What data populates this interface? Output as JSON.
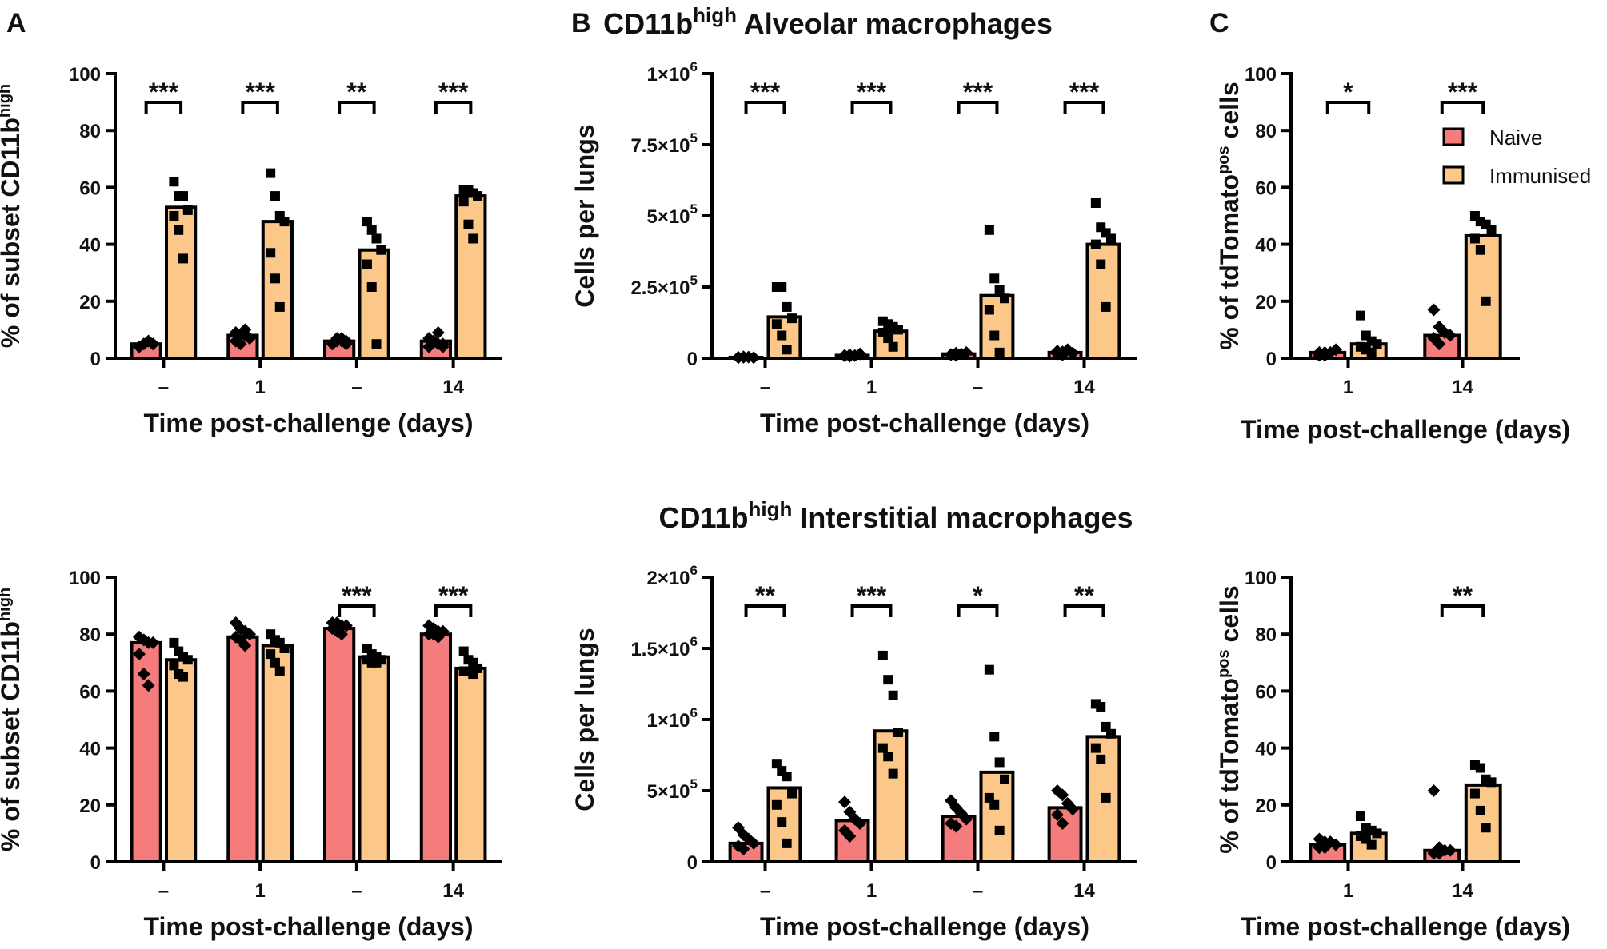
{
  "figure": {
    "panel_letters": [
      "A",
      "B",
      "C"
    ],
    "titles": {
      "alveolar": {
        "base": "CD11b",
        "sup": "high",
        "rest": " Alveolar macrophages"
      },
      "interstitial": {
        "base": "CD11b",
        "sup": "high",
        "rest": " Interstitial macrophages"
      }
    },
    "legend": {
      "items": [
        {
          "label": "Naive",
          "color": "#f47c7c"
        },
        {
          "label": "Immunised",
          "color": "#fbc88a"
        }
      ]
    },
    "colors": {
      "naive": "#f47c7c",
      "immunised": "#fbc88a",
      "bar_stroke": "#000000"
    }
  },
  "chart_data": [
    {
      "id": "A-top",
      "type": "bar",
      "categories": [
        "–",
        "1",
        "–",
        "14"
      ],
      "xlabel": "Time post-challenge (days)",
      "ylabel": {
        "pre": "% of subset CD11b",
        "sup": "high",
        "post": ""
      },
      "ylim": [
        0,
        100
      ],
      "yticks": [
        0,
        20,
        40,
        60,
        80,
        100
      ],
      "ytick_labels": [
        "0",
        "20",
        "40",
        "60",
        "80",
        "100"
      ],
      "series": [
        {
          "name": "Naive",
          "values": [
            5,
            8,
            6,
            6
          ],
          "points": [
            [
              4,
              5,
              6,
              5,
              4,
              5,
              6,
              5
            ],
            [
              6,
              8,
              10,
              7,
              9,
              5,
              8,
              7
            ],
            [
              5,
              6,
              7,
              6,
              5,
              7,
              6,
              5
            ],
            [
              4,
              6,
              9,
              5,
              7,
              6,
              5,
              4
            ]
          ]
        },
        {
          "name": "Immunised",
          "values": [
            53,
            48,
            38,
            57
          ],
          "points": [
            [
              62,
              57,
              57,
              52,
              50,
              45,
              35
            ],
            [
              65,
              57,
              50,
              48,
              37,
              28,
              18
            ],
            [
              48,
              45,
              42,
              38,
              33,
              25,
              5
            ],
            [
              59,
              59,
              58,
              57,
              55,
              47,
              42
            ]
          ]
        }
      ],
      "significance": [
        "***",
        "***",
        "**",
        "***"
      ]
    },
    {
      "id": "A-bottom",
      "type": "bar",
      "categories": [
        "–",
        "1",
        "–",
        "14"
      ],
      "xlabel": "Time post-challenge (days)",
      "ylabel": {
        "pre": "% of subset CD11b",
        "sup": "high",
        "post": ""
      },
      "ylim": [
        0,
        100
      ],
      "yticks": [
        0,
        20,
        40,
        60,
        80,
        100
      ],
      "ytick_labels": [
        "0",
        "20",
        "40",
        "60",
        "80",
        "100"
      ],
      "series": [
        {
          "name": "Naive",
          "values": [
            77,
            79,
            82,
            80
          ],
          "points": [
            [
              79,
              78,
              77,
              77,
              73,
              66,
              62
            ],
            [
              84,
              82,
              81,
              80,
              79,
              78,
              76
            ],
            [
              84,
              84,
              83,
              83,
              82,
              81,
              80
            ],
            [
              83,
              82,
              81,
              81,
              80,
              80,
              79
            ]
          ]
        },
        {
          "name": "Immunised",
          "values": [
            71,
            76,
            72,
            68
          ],
          "points": [
            [
              77,
              74,
              72,
              71,
              69,
              66,
              65
            ],
            [
              80,
              78,
              77,
              75,
              73,
              70,
              67
            ],
            [
              75,
              73,
              72,
              71,
              71,
              70,
              70
            ],
            [
              74,
              71,
              70,
              68,
              67,
              67,
              66
            ]
          ]
        }
      ],
      "significance": [
        "",
        "",
        "***",
        "***"
      ]
    },
    {
      "id": "B-top",
      "type": "bar",
      "categories": [
        "–",
        "1",
        "–",
        "14"
      ],
      "xlabel": "Time post-challenge (days)",
      "ylabel": {
        "pre": "Cells per lungs",
        "sup": "",
        "post": ""
      },
      "ylim": [
        0,
        1000000
      ],
      "yticks": [
        0,
        250000,
        500000,
        750000,
        1000000
      ],
      "ytick_labels": [
        {
          "m": "0",
          "e": ""
        },
        {
          "m": "2.5×10",
          "e": "5"
        },
        {
          "m": "5×10",
          "e": "5"
        },
        {
          "m": "7.5×10",
          "e": "5"
        },
        {
          "m": "1×10",
          "e": "6"
        }
      ],
      "series": [
        {
          "name": "Naive",
          "values": [
            3000,
            10000,
            15000,
            20000
          ],
          "points": [
            [
              2000,
              3000,
              4000,
              2000,
              3000,
              5000
            ],
            [
              8000,
              12000,
              9000,
              15000,
              10000,
              7000
            ],
            [
              12000,
              18000,
              15000,
              20000,
              13000,
              10000
            ],
            [
              15000,
              22000,
              30000,
              18000,
              25000,
              12000
            ]
          ]
        },
        {
          "name": "Immunised",
          "values": [
            145000,
            95000,
            220000,
            400000
          ],
          "points": [
            [
              250000,
              250000,
              180000,
              140000,
              120000,
              80000,
              30000
            ],
            [
              130000,
              120000,
              110000,
              100000,
              90000,
              70000,
              40000
            ],
            [
              450000,
              280000,
              240000,
              210000,
              170000,
              80000,
              20000
            ],
            [
              545000,
              460000,
              440000,
              420000,
              400000,
              330000,
              180000
            ]
          ]
        }
      ],
      "significance": [
        "***",
        "***",
        "***",
        "***"
      ]
    },
    {
      "id": "B-bottom",
      "type": "bar",
      "categories": [
        "–",
        "1",
        "–",
        "14"
      ],
      "xlabel": "Time post-challenge (days)",
      "ylabel": {
        "pre": "Cells per lungs",
        "sup": "",
        "post": ""
      },
      "ylim": [
        0,
        2000000
      ],
      "yticks": [
        0,
        500000,
        1000000,
        1500000,
        2000000
      ],
      "ytick_labels": [
        {
          "m": "0",
          "e": ""
        },
        {
          "m": "5×10",
          "e": "5"
        },
        {
          "m": "1×10",
          "e": "6"
        },
        {
          "m": "1.5×10",
          "e": "6"
        },
        {
          "m": "2×10",
          "e": "6"
        }
      ],
      "series": [
        {
          "name": "Naive",
          "values": [
            130000,
            290000,
            320000,
            380000
          ],
          "points": [
            [
              240000,
              190000,
              160000,
              130000,
              110000,
              90000
            ],
            [
              420000,
              350000,
              300000,
              270000,
              220000,
              180000
            ],
            [
              430000,
              380000,
              340000,
              300000,
              270000,
              250000
            ],
            [
              500000,
              470000,
              410000,
              370000,
              330000,
              270000
            ]
          ]
        },
        {
          "name": "Immunised",
          "values": [
            520000,
            920000,
            630000,
            880000
          ],
          "points": [
            [
              690000,
              640000,
              600000,
              480000,
              400000,
              280000,
              130000
            ],
            [
              1450000,
              1280000,
              1170000,
              910000,
              800000,
              740000,
              620000
            ],
            [
              1350000,
              880000,
              700000,
              580000,
              450000,
              400000,
              220000
            ],
            [
              1110000,
              1090000,
              950000,
              900000,
              800000,
              720000,
              450000
            ]
          ]
        }
      ],
      "significance": [
        "**",
        "***",
        "*",
        "**"
      ]
    },
    {
      "id": "C-top",
      "type": "bar",
      "categories": [
        "1",
        "14"
      ],
      "xlabel": "Time post-challenge (days)",
      "ylabel": {
        "pre": "% of tdTomato",
        "sup": "pos",
        "post": " cells"
      },
      "ylim": [
        0,
        100
      ],
      "yticks": [
        0,
        20,
        40,
        60,
        80,
        100
      ],
      "ytick_labels": [
        "0",
        "20",
        "40",
        "60",
        "80",
        "100"
      ],
      "series": [
        {
          "name": "Naive",
          "values": [
            2,
            8
          ],
          "points": [
            [
              1,
              2,
              2,
              3,
              2,
              1
            ],
            [
              17,
              11,
              9,
              8,
              7,
              5
            ]
          ]
        },
        {
          "name": "Immunised",
          "values": [
            5,
            43
          ],
          "points": [
            [
              15,
              8,
              6,
              5,
              4,
              3,
              2
            ],
            [
              50,
              48,
              47,
              45,
              42,
              38,
              20
            ]
          ]
        }
      ],
      "significance": [
        "*",
        "***"
      ],
      "legend": true
    },
    {
      "id": "C-bottom",
      "type": "bar",
      "categories": [
        "1",
        "14"
      ],
      "xlabel": "Time post-challenge (days)",
      "ylabel": {
        "pre": "% of tdTomato",
        "sup": "pos",
        "post": " cells"
      },
      "ylim": [
        0,
        100
      ],
      "yticks": [
        0,
        20,
        40,
        60,
        80,
        100
      ],
      "ytick_labels": [
        "0",
        "20",
        "40",
        "60",
        "80",
        "100"
      ],
      "series": [
        {
          "name": "Naive",
          "values": [
            6,
            4
          ],
          "points": [
            [
              8,
              7,
              7,
              6,
              5,
              5
            ],
            [
              25,
              5,
              4,
              4,
              3,
              3
            ]
          ]
        },
        {
          "name": "Immunised",
          "values": [
            10,
            27
          ],
          "points": [
            [
              16,
              12,
              11,
              10,
              9,
              8,
              6
            ],
            [
              34,
              33,
              29,
              28,
              24,
              18,
              12
            ]
          ]
        }
      ],
      "significance": [
        "",
        "**"
      ]
    }
  ]
}
